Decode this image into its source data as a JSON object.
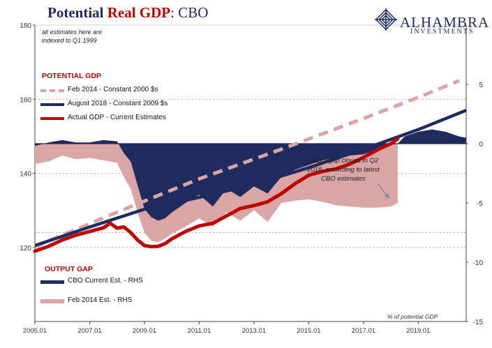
{
  "title": {
    "part1": "Potential ",
    "part2": "Real GDP",
    "part3": ":  CBO"
  },
  "logo": {
    "name": "ALHAMBRA",
    "sub": "INVESTMENTS"
  },
  "note": "all estimates here are indexed to Q1 1999",
  "potential_heading": "POTENTIAL GDP",
  "gap_heading": "OUTPUT GAP",
  "annotation": "output gap closed in Q2 2018, according to latest CBO estimates",
  "units_note": "% of potential GDP",
  "colors": {
    "navy": "#1f2a5e",
    "red": "#c00000",
    "pink": "#d9a5a5",
    "axis": "#444444"
  },
  "chart_data": {
    "type": "line",
    "x_tick_labels": [
      "2005.01",
      "2007.01",
      "2009.01",
      "2011.01",
      "2013.01",
      "2015.01",
      "2017.01",
      "2019.01"
    ],
    "x_range": [
      2005.0,
      2020.75
    ],
    "left_axis": {
      "ylim": [
        100,
        180
      ],
      "ticks": [
        120,
        140,
        160,
        180
      ]
    },
    "right_axis": {
      "ylim": [
        -15,
        10
      ],
      "ticks": [
        5,
        0,
        -5,
        -10,
        -15
      ]
    },
    "series": [
      {
        "name": "Feb 2014 - Constant 2000 $s",
        "axis": "left",
        "style": "dashed",
        "color": "#d9a5a5",
        "x": [
          2005.0,
          2008.0,
          2011.0,
          2014.0,
          2017.0,
          2019.0,
          2020.5
        ],
        "y": [
          120.2,
          129.5,
          138.5,
          146.5,
          154.8,
          160.5,
          165.0
        ]
      },
      {
        "name": "August 2018 - Constant 2009 $s",
        "axis": "left",
        "style": "solid",
        "color": "#1f2a5e",
        "x": [
          2005.0,
          2007.0,
          2009.0,
          2011.0,
          2013.0,
          2015.0,
          2017.0,
          2019.0,
          2020.75
        ],
        "y": [
          120.5,
          125.5,
          130.3,
          133.5,
          137.0,
          141.5,
          146.5,
          151.8,
          157.0
        ]
      },
      {
        "name": "Actual GDP - Current Estimates",
        "axis": "left",
        "style": "solid",
        "color": "#c00000",
        "x": [
          2005.0,
          2005.5,
          2006.0,
          2006.5,
          2007.0,
          2007.5,
          2007.75,
          2008.0,
          2008.25,
          2008.5,
          2008.75,
          2009.0,
          2009.25,
          2009.5,
          2009.75,
          2010.0,
          2010.5,
          2011.0,
          2011.5,
          2012.0,
          2012.5,
          2013.0,
          2013.5,
          2014.0,
          2014.5,
          2015.0,
          2015.5,
          2016.0,
          2016.5,
          2017.0,
          2017.5,
          2018.0,
          2018.25
        ],
        "y": [
          119.0,
          120.3,
          122.0,
          123.3,
          124.3,
          125.3,
          126.5,
          125.2,
          125.5,
          124.0,
          122.0,
          120.5,
          120.2,
          120.3,
          121.0,
          122.3,
          124.3,
          125.8,
          126.5,
          128.5,
          130.5,
          131.3,
          132.3,
          134.5,
          137.2,
          139.5,
          140.5,
          141.2,
          142.5,
          144.3,
          146.3,
          148.0,
          149.3
        ]
      },
      {
        "name": "CBO Current Est. - RHS",
        "axis": "right",
        "style": "area",
        "color": "#1f2a5e",
        "x": [
          2005.0,
          2005.5,
          2006.0,
          2006.5,
          2007.0,
          2007.5,
          2008.0,
          2008.25,
          2008.5,
          2008.75,
          2009.0,
          2009.25,
          2009.5,
          2009.75,
          2010.0,
          2010.5,
          2011.0,
          2011.5,
          2012.0,
          2012.5,
          2013.0,
          2013.5,
          2014.0,
          2014.5,
          2015.0,
          2015.5,
          2016.0,
          2016.5,
          2017.0,
          2017.5,
          2018.0,
          2018.25,
          2018.5,
          2019.0,
          2019.5,
          2020.0,
          2020.5,
          2020.75
        ],
        "y": [
          -0.2,
          0.1,
          0.3,
          0.1,
          0.1,
          0.3,
          0.2,
          -0.8,
          -1.5,
          -3.5,
          -5.5,
          -6.2,
          -6.5,
          -6.3,
          -5.8,
          -5.0,
          -4.3,
          -5.3,
          -3.8,
          -4.5,
          -3.6,
          -4.2,
          -2.8,
          -2.2,
          -1.8,
          -1.4,
          -1.2,
          -1.0,
          -0.9,
          -0.5,
          -0.1,
          0.0,
          0.6,
          1.0,
          1.2,
          1.0,
          0.6,
          0.5
        ]
      },
      {
        "name": "Feb 2014 Est. - RHS",
        "axis": "right",
        "style": "area",
        "color": "#d9a5a5",
        "x": [
          2005.0,
          2005.5,
          2006.0,
          2006.5,
          2007.0,
          2007.5,
          2008.0,
          2008.25,
          2008.5,
          2008.75,
          2009.0,
          2009.25,
          2009.5,
          2009.75,
          2010.0,
          2010.5,
          2011.0,
          2011.5,
          2012.0,
          2012.5,
          2013.0,
          2013.5,
          2014.0,
          2014.5,
          2015.0,
          2015.5,
          2016.0,
          2016.5,
          2017.0,
          2017.5,
          2018.0,
          2018.25
        ],
        "y": [
          -1.7,
          -1.5,
          -1.0,
          -1.3,
          -1.2,
          -1.4,
          -1.6,
          -2.8,
          -3.8,
          -5.8,
          -7.5,
          -8.2,
          -8.3,
          -8.0,
          -7.6,
          -7.0,
          -6.3,
          -7.0,
          -5.8,
          -6.5,
          -5.6,
          -6.6,
          -5.0,
          -4.8,
          -4.7,
          -4.9,
          -5.2,
          -5.3,
          -5.4,
          -5.4,
          -5.3,
          -5.0
        ]
      }
    ]
  }
}
